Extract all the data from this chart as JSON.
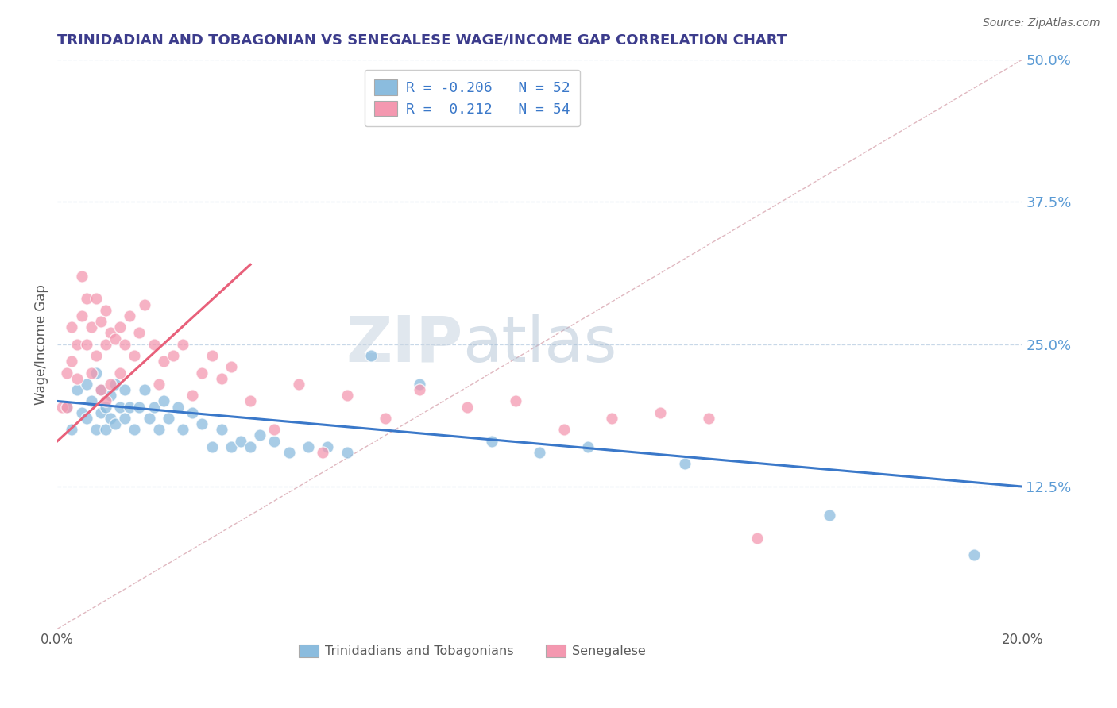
{
  "title": "TRINIDADIAN AND TOBAGONIAN VS SENEGALESE WAGE/INCOME GAP CORRELATION CHART",
  "source": "Source: ZipAtlas.com",
  "ylabel": "Wage/Income Gap",
  "x_min": 0.0,
  "x_max": 0.2,
  "y_min": 0.0,
  "y_max": 0.5,
  "x_ticks": [
    0.0,
    0.2
  ],
  "x_tick_labels": [
    "0.0%",
    "20.0%"
  ],
  "y_ticks": [
    0.0,
    0.125,
    0.25,
    0.375,
    0.5
  ],
  "y_tick_labels": [
    "",
    "12.5%",
    "25.0%",
    "37.5%",
    "50.0%"
  ],
  "legend_entries": [
    {
      "label": "R = -0.206   N = 52",
      "color": "#a8c4e0"
    },
    {
      "label": "R =  0.212   N = 54",
      "color": "#f4b8c8"
    }
  ],
  "legend_labels_bottom": [
    "Trinidadians and Tobagonians",
    "Senegalese"
  ],
  "blue_scatter_x": [
    0.002,
    0.003,
    0.004,
    0.005,
    0.006,
    0.006,
    0.007,
    0.008,
    0.008,
    0.009,
    0.009,
    0.01,
    0.01,
    0.011,
    0.011,
    0.012,
    0.012,
    0.013,
    0.014,
    0.014,
    0.015,
    0.016,
    0.017,
    0.018,
    0.019,
    0.02,
    0.021,
    0.022,
    0.023,
    0.025,
    0.026,
    0.028,
    0.03,
    0.032,
    0.034,
    0.036,
    0.038,
    0.04,
    0.042,
    0.045,
    0.048,
    0.052,
    0.056,
    0.06,
    0.065,
    0.075,
    0.09,
    0.1,
    0.11,
    0.13,
    0.16,
    0.19
  ],
  "blue_scatter_y": [
    0.195,
    0.175,
    0.21,
    0.19,
    0.215,
    0.185,
    0.2,
    0.225,
    0.175,
    0.21,
    0.19,
    0.195,
    0.175,
    0.205,
    0.185,
    0.215,
    0.18,
    0.195,
    0.21,
    0.185,
    0.195,
    0.175,
    0.195,
    0.21,
    0.185,
    0.195,
    0.175,
    0.2,
    0.185,
    0.195,
    0.175,
    0.19,
    0.18,
    0.16,
    0.175,
    0.16,
    0.165,
    0.16,
    0.17,
    0.165,
    0.155,
    0.16,
    0.16,
    0.155,
    0.24,
    0.215,
    0.165,
    0.155,
    0.16,
    0.145,
    0.1,
    0.065
  ],
  "pink_scatter_x": [
    0.001,
    0.002,
    0.002,
    0.003,
    0.003,
    0.004,
    0.004,
    0.005,
    0.005,
    0.006,
    0.006,
    0.007,
    0.007,
    0.008,
    0.008,
    0.009,
    0.009,
    0.01,
    0.01,
    0.01,
    0.011,
    0.011,
    0.012,
    0.013,
    0.013,
    0.014,
    0.015,
    0.016,
    0.017,
    0.018,
    0.02,
    0.021,
    0.022,
    0.024,
    0.026,
    0.028,
    0.03,
    0.032,
    0.034,
    0.036,
    0.04,
    0.045,
    0.05,
    0.055,
    0.06,
    0.068,
    0.075,
    0.085,
    0.095,
    0.105,
    0.115,
    0.125,
    0.135,
    0.145
  ],
  "pink_scatter_y": [
    0.195,
    0.225,
    0.195,
    0.265,
    0.235,
    0.25,
    0.22,
    0.31,
    0.275,
    0.29,
    0.25,
    0.265,
    0.225,
    0.29,
    0.24,
    0.27,
    0.21,
    0.28,
    0.25,
    0.2,
    0.26,
    0.215,
    0.255,
    0.265,
    0.225,
    0.25,
    0.275,
    0.24,
    0.26,
    0.285,
    0.25,
    0.215,
    0.235,
    0.24,
    0.25,
    0.205,
    0.225,
    0.24,
    0.22,
    0.23,
    0.2,
    0.175,
    0.215,
    0.155,
    0.205,
    0.185,
    0.21,
    0.195,
    0.2,
    0.175,
    0.185,
    0.19,
    0.185,
    0.08
  ],
  "blue_line_x": [
    0.0,
    0.2
  ],
  "blue_line_y": [
    0.2,
    0.125
  ],
  "pink_line_x": [
    0.0,
    0.04
  ],
  "pink_line_y": [
    0.165,
    0.32
  ],
  "diag_line_x": [
    0.0,
    0.2
  ],
  "diag_line_y": [
    0.0,
    0.5
  ],
  "watermark_zip": "ZIP",
  "watermark_atlas": "atlas",
  "title_color": "#3c3c8c",
  "axis_color": "#5a5a5a",
  "blue_color": "#8bbcde",
  "pink_color": "#f498b0",
  "blue_line_color": "#3a78c9",
  "pink_line_color": "#e8607a",
  "diag_color": "#e0b8c0",
  "background_color": "#ffffff",
  "grid_color": "#c8d8e8",
  "right_tick_color": "#5b9bd5"
}
